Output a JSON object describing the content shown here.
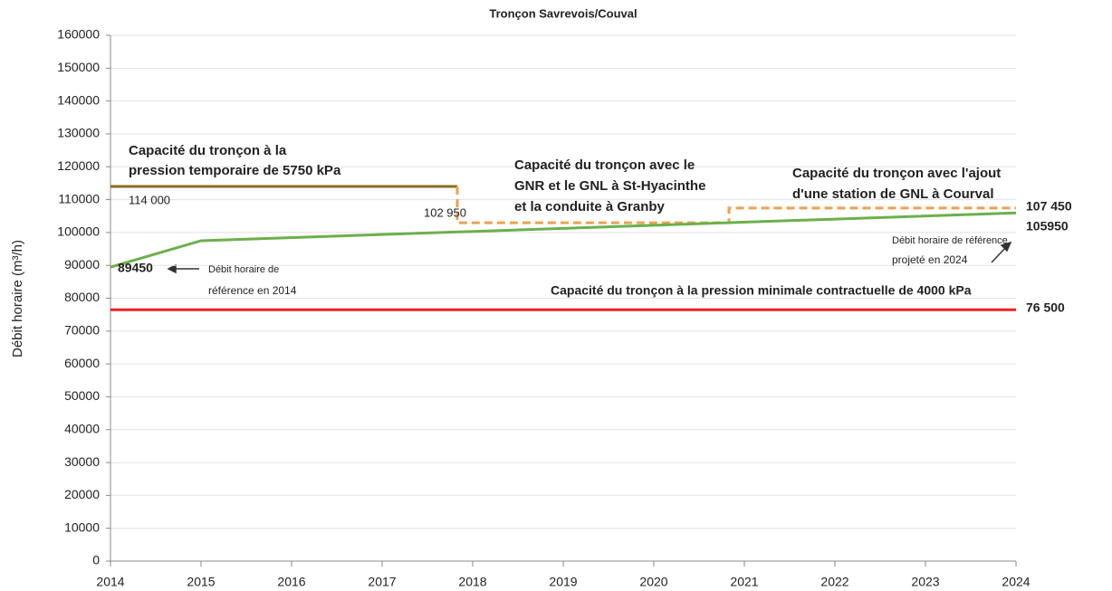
{
  "chart_data": {
    "type": "line",
    "title": "Tronçon Savrevois/Couval",
    "y_label": "Débit horaire (m³/h)",
    "xlim": [
      2014,
      2024
    ],
    "xticks": [
      2014,
      2015,
      2016,
      2017,
      2018,
      2019,
      2020,
      2021,
      2022,
      2023,
      2024
    ],
    "ylim": [
      0,
      160000
    ],
    "yticks": [
      0,
      10000,
      20000,
      30000,
      40000,
      50000,
      60000,
      70000,
      80000,
      90000,
      100000,
      110000,
      120000,
      130000,
      140000,
      150000,
      160000
    ],
    "grid": true,
    "series": [
      {
        "color": "#8a6d1e",
        "dash": false,
        "x": [
          2014,
          2017.83
        ],
        "values": [
          114000,
          114000
        ],
        "value_labels": [
          "114 000",
          null
        ]
      },
      {
        "color": "#f0a050",
        "dash": true,
        "x": [
          2017.83,
          2017.83,
          2020.83,
          2020.83,
          2024
        ],
        "values": [
          114000,
          102950,
          102950,
          107450,
          107450
        ],
        "value_labels": [
          null,
          "102 950",
          null,
          null,
          "107 450"
        ]
      },
      {
        "color": "#6ab04c",
        "dash": false,
        "x": [
          2014,
          2015,
          2024
        ],
        "values": [
          89450,
          97500,
          105950
        ],
        "value_labels": [
          "89450",
          null,
          "105950"
        ]
      },
      {
        "color": "#ee2222",
        "dash": false,
        "x": [
          2014,
          2024
        ],
        "values": [
          76500,
          76500
        ],
        "value_labels": [
          null,
          "76 500"
        ]
      }
    ],
    "annotations": [
      "Capacité du tronçon à la",
      "pression temporaire de 5750 kPa",
      "Capacité du tronçon avec le",
      "GNR et le GNL à St-Hyacinthe",
      "et la conduite à Granby",
      "Capacité du tronçon avec l'ajout",
      "d'une station  de GNL à Courval",
      "Capacité du tronçon à la pression minimale contractuelle de 4000 kPa",
      "Débit horaire de",
      "référence en 2014",
      "Débit horaire de référence",
      "projeté en 2024"
    ]
  }
}
